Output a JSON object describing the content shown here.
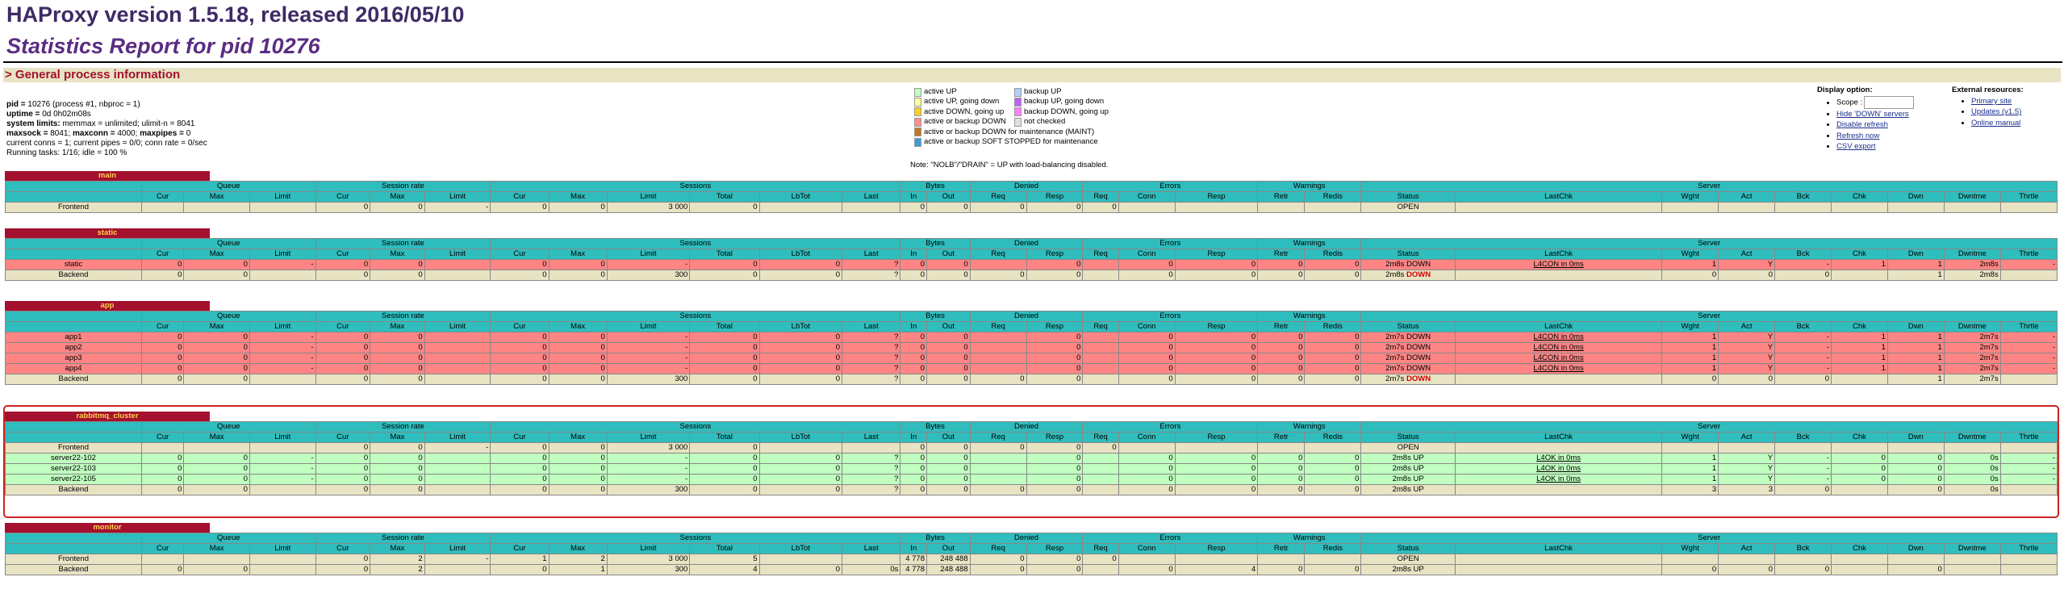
{
  "header": {
    "title": "HAProxy version 1.5.18, released 2016/05/10",
    "subtitle": "Statistics Report for pid 10276",
    "section": "> General process information"
  },
  "info": {
    "line1_label": "pid = ",
    "line1_val": "10276 (process #1, nbproc = 1)",
    "line2_label": "uptime = ",
    "line2_val": "0d 0h02m08s",
    "line3_label": "system limits:",
    "line3_val": " memmax = unlimited; ulimit-n = 8041",
    "line4_label1": "maxsock = ",
    "line4_val1": "8041; ",
    "line4_label2": "maxconn = ",
    "line4_val2": "4000; ",
    "line4_label3": "maxpipes = ",
    "line4_val3": "0",
    "line5": "current conns = 1; current pipes = 0/0; conn rate = 0/sec",
    "line6": "Running tasks: 1/16; idle = 100 %"
  },
  "legend": {
    "col1": [
      {
        "label": "active UP",
        "color": "#c0ffc0"
      },
      {
        "label": "active UP, going down",
        "color": "#ffffa0"
      },
      {
        "label": "active DOWN, going up",
        "color": "#ffd020"
      },
      {
        "label": "active or backup DOWN",
        "color": "#ff9090"
      },
      {
        "label": "active or backup DOWN for maintenance (MAINT)",
        "color": "#c07820"
      },
      {
        "label": "active or backup SOFT STOPPED for maintenance",
        "color": "#3a9fd6"
      }
    ],
    "col2": [
      {
        "label": "backup UP",
        "color": "#b0d0ff"
      },
      {
        "label": "backup UP, going down",
        "color": "#c060ff"
      },
      {
        "label": "backup DOWN, going up",
        "color": "#ff80ff"
      },
      {
        "label": "not checked",
        "color": "#e0e0e0"
      }
    ],
    "note": "Note: \"NOLB\"/\"DRAIN\" = UP with load-balancing disabled."
  },
  "display": {
    "title": "Display option:",
    "scope": "Scope :",
    "links": [
      "Hide 'DOWN' servers",
      "Disable refresh",
      "Refresh now",
      "CSV export"
    ]
  },
  "external": {
    "title": "External resources:",
    "links": [
      "Primary site",
      "Updates (v1.5)",
      "Online manual"
    ]
  },
  "groups": [
    "Queue",
    "Session rate",
    "Sessions",
    "Bytes",
    "Denied",
    "Errors",
    "Warnings",
    "Server"
  ],
  "cols": [
    "Cur",
    "Max",
    "Limit",
    "Cur",
    "Max",
    "Limit",
    "Cur",
    "Max",
    "Limit",
    "Total",
    "LbTot",
    "Last",
    "In",
    "Out",
    "Req",
    "Resp",
    "Req",
    "Conn",
    "Resp",
    "Retr",
    "Redis",
    "Status",
    "LastChk",
    "Wght",
    "Act",
    "Bck",
    "Chk",
    "Dwn",
    "Dwntme",
    "Thrtle"
  ],
  "proxies": [
    {
      "name": "main",
      "rows": [
        {
          "type": "fe",
          "c": [
            "Frontend",
            "",
            "",
            "",
            "0",
            "0",
            "-",
            "0",
            "0",
            "3 000",
            "0",
            "",
            "",
            "0",
            "0",
            "0",
            "0",
            "0",
            "",
            "",
            "",
            "",
            "OPEN",
            "",
            "",
            "",
            "",
            "",
            "",
            "",
            ""
          ]
        }
      ]
    },
    {
      "name": "static",
      "rows": [
        {
          "type": "down",
          "c": [
            "static",
            "0",
            "0",
            "-",
            "0",
            "0",
            "",
            "0",
            "0",
            "-",
            "0",
            "0",
            "?",
            "0",
            "0",
            "",
            "0",
            "",
            "0",
            "0",
            "0",
            "0",
            "2m8s DOWN",
            "L4CON in 0ms",
            "1",
            "Y",
            "-",
            "1",
            "1",
            "2m8s",
            "-"
          ]
        },
        {
          "type": "be",
          "c": [
            "Backend",
            "0",
            "0",
            "",
            "0",
            "0",
            "",
            "0",
            "0",
            "300",
            "0",
            "0",
            "?",
            "0",
            "0",
            "0",
            "0",
            "",
            "0",
            "0",
            "0",
            "0",
            "2m8s DOWN",
            "",
            "0",
            "0",
            "0",
            "",
            "1",
            "2m8s",
            ""
          ]
        }
      ]
    },
    {
      "name": "app",
      "rows": [
        {
          "type": "down",
          "c": [
            "app1",
            "0",
            "0",
            "-",
            "0",
            "0",
            "",
            "0",
            "0",
            "-",
            "0",
            "0",
            "?",
            "0",
            "0",
            "",
            "0",
            "",
            "0",
            "0",
            "0",
            "0",
            "2m7s DOWN",
            "L4CON in 0ms",
            "1",
            "Y",
            "-",
            "1",
            "1",
            "2m7s",
            "-"
          ]
        },
        {
          "type": "down",
          "c": [
            "app2",
            "0",
            "0",
            "-",
            "0",
            "0",
            "",
            "0",
            "0",
            "-",
            "0",
            "0",
            "?",
            "0",
            "0",
            "",
            "0",
            "",
            "0",
            "0",
            "0",
            "0",
            "2m7s DOWN",
            "L4CON in 0ms",
            "1",
            "Y",
            "-",
            "1",
            "1",
            "2m7s",
            "-"
          ]
        },
        {
          "type": "down",
          "c": [
            "app3",
            "0",
            "0",
            "-",
            "0",
            "0",
            "",
            "0",
            "0",
            "-",
            "0",
            "0",
            "?",
            "0",
            "0",
            "",
            "0",
            "",
            "0",
            "0",
            "0",
            "0",
            "2m7s DOWN",
            "L4CON in 0ms",
            "1",
            "Y",
            "-",
            "1",
            "1",
            "2m7s",
            "-"
          ]
        },
        {
          "type": "down",
          "c": [
            "app4",
            "0",
            "0",
            "-",
            "0",
            "0",
            "",
            "0",
            "0",
            "-",
            "0",
            "0",
            "?",
            "0",
            "0",
            "",
            "0",
            "",
            "0",
            "0",
            "0",
            "0",
            "2m7s DOWN",
            "L4CON in 0ms",
            "1",
            "Y",
            "-",
            "1",
            "1",
            "2m7s",
            "-"
          ]
        },
        {
          "type": "be",
          "c": [
            "Backend",
            "0",
            "0",
            "",
            "0",
            "0",
            "",
            "0",
            "0",
            "300",
            "0",
            "0",
            "?",
            "0",
            "0",
            "0",
            "0",
            "",
            "0",
            "0",
            "0",
            "0",
            "2m7s DOWN",
            "",
            "0",
            "0",
            "0",
            "",
            "1",
            "2m7s",
            ""
          ]
        }
      ]
    },
    {
      "name": "rabbitmq_cluster",
      "rows": [
        {
          "type": "fe",
          "c": [
            "Frontend",
            "",
            "",
            "",
            "0",
            "0",
            "-",
            "0",
            "0",
            "3 000",
            "0",
            "",
            "",
            "0",
            "0",
            "0",
            "0",
            "0",
            "",
            "",
            "",
            "",
            "OPEN",
            "",
            "",
            "",
            "",
            "",
            "",
            "",
            ""
          ]
        },
        {
          "type": "up",
          "c": [
            "server22-102",
            "0",
            "0",
            "-",
            "0",
            "0",
            "",
            "0",
            "0",
            "-",
            "0",
            "0",
            "?",
            "0",
            "0",
            "",
            "0",
            "",
            "0",
            "0",
            "0",
            "0",
            "2m8s UP",
            "L4OK in 0ms",
            "1",
            "Y",
            "-",
            "0",
            "0",
            "0s",
            "-"
          ]
        },
        {
          "type": "up",
          "c": [
            "server22-103",
            "0",
            "0",
            "-",
            "0",
            "0",
            "",
            "0",
            "0",
            "-",
            "0",
            "0",
            "?",
            "0",
            "0",
            "",
            "0",
            "",
            "0",
            "0",
            "0",
            "0",
            "2m8s UP",
            "L4OK in 0ms",
            "1",
            "Y",
            "-",
            "0",
            "0",
            "0s",
            "-"
          ]
        },
        {
          "type": "up",
          "c": [
            "server22-105",
            "0",
            "0",
            "-",
            "0",
            "0",
            "",
            "0",
            "0",
            "-",
            "0",
            "0",
            "?",
            "0",
            "0",
            "",
            "0",
            "",
            "0",
            "0",
            "0",
            "0",
            "2m8s UP",
            "L4OK in 0ms",
            "1",
            "Y",
            "-",
            "0",
            "0",
            "0s",
            "-"
          ]
        },
        {
          "type": "be",
          "c": [
            "Backend",
            "0",
            "0",
            "",
            "0",
            "0",
            "",
            "0",
            "0",
            "300",
            "0",
            "0",
            "?",
            "0",
            "0",
            "0",
            "0",
            "",
            "0",
            "0",
            "0",
            "0",
            "2m8s UP",
            "",
            "3",
            "3",
            "0",
            "",
            "0",
            "0s",
            ""
          ]
        }
      ]
    },
    {
      "name": "monitor",
      "rows": [
        {
          "type": "fe",
          "c": [
            "Frontend",
            "",
            "",
            "",
            "0",
            "2",
            "-",
            "1",
            "2",
            "3 000",
            "5",
            "",
            "",
            "4 778",
            "248 488",
            "0",
            "0",
            "0",
            "",
            "",
            "",
            "",
            "OPEN",
            "",
            "",
            "",
            "",
            "",
            "",
            "",
            ""
          ]
        },
        {
          "type": "be",
          "c": [
            "Backend",
            "0",
            "0",
            "",
            "0",
            "2",
            "",
            "0",
            "1",
            "300",
            "4",
            "0",
            "0s",
            "4 778",
            "248 488",
            "0",
            "0",
            "",
            "0",
            "4",
            "0",
            "0",
            "2m8s UP",
            "",
            "0",
            "0",
            "0",
            "",
            "0",
            "",
            ""
          ]
        }
      ]
    }
  ]
}
